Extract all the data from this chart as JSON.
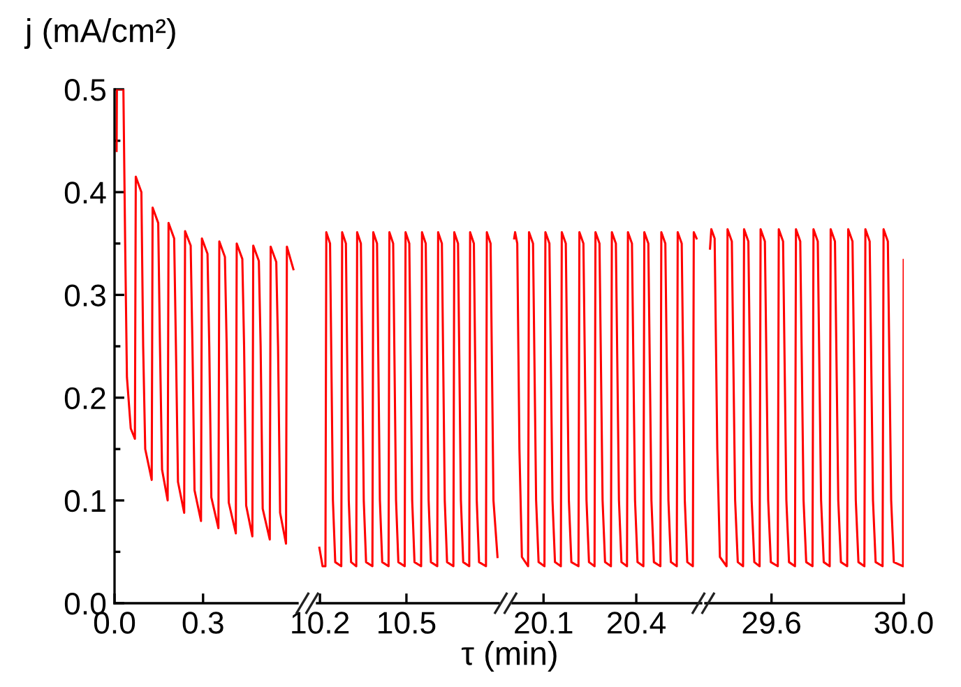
{
  "chart_data": [
    {
      "type": "line",
      "xlabel": "τ (min)",
      "ylabel": "j (mA/cm²)",
      "x": [
        0.007,
        0.008,
        0.03,
        0.036,
        0.042,
        0.055,
        0.069,
        0.072,
        0.091,
        0.097,
        0.104,
        0.126,
        0.129,
        0.148,
        0.154,
        0.161,
        0.18,
        0.183,
        0.202,
        0.208,
        0.215,
        0.236,
        0.239,
        0.258,
        0.264,
        0.271,
        0.293,
        0.296,
        0.315,
        0.321,
        0.328,
        0.352,
        0.355,
        0.374,
        0.38,
        0.387,
        0.411,
        0.414,
        0.433,
        0.439,
        0.446,
        0.467,
        0.47,
        0.489,
        0.495,
        0.502,
        0.526,
        0.529,
        0.548,
        0.554,
        0.561,
        0.581,
        0.584,
        0.606
      ],
      "series": [
        {
          "color": "#ff0000",
          "values": [
            0.44,
            0.5,
            0.5,
            0.35,
            0.22,
            0.17,
            0.16,
            0.415,
            0.4,
            0.25,
            0.15,
            0.12,
            0.385,
            0.37,
            0.25,
            0.13,
            0.1,
            0.37,
            0.355,
            0.25,
            0.118,
            0.088,
            0.362,
            0.348,
            0.25,
            0.11,
            0.08,
            0.355,
            0.34,
            0.25,
            0.103,
            0.073,
            0.352,
            0.337,
            0.25,
            0.098,
            0.068,
            0.35,
            0.335,
            0.25,
            0.095,
            0.065,
            0.348,
            0.333,
            0.25,
            0.092,
            0.062,
            0.347,
            0.332,
            0.25,
            0.088,
            0.058,
            0.347,
            0.325
          ]
        }
      ],
      "xlim": [
        0,
        0.62
      ],
      "xticks": [
        {
          "value": 0,
          "label": "0.0"
        },
        {
          "value": 0.3,
          "label": "0.3"
        }
      ],
      "ylim": [
        0,
        0.5
      ],
      "yticks": [
        {
          "value": 0,
          "label": "0.0"
        },
        {
          "value": 0.05,
          "label": null
        },
        0.1,
        {
          "value": 0.15,
          "label": null
        },
        0.2,
        {
          "value": 0.25,
          "label": null
        },
        0.3,
        {
          "value": 0.35,
          "label": null
        },
        0.4,
        {
          "value": 0.45,
          "label": null
        },
        0.5
      ]
    },
    {
      "type": "line",
      "x": [
        10.198,
        10.209,
        10.219,
        10.222,
        10.235,
        10.245,
        10.253,
        10.274,
        10.277,
        10.29,
        10.3,
        10.308,
        10.326,
        10.329,
        10.342,
        10.352,
        10.36,
        10.382,
        10.385,
        10.398,
        10.408,
        10.416,
        10.438,
        10.441,
        10.454,
        10.464,
        10.472,
        10.494,
        10.497,
        10.51,
        10.52,
        10.528,
        10.551,
        10.554,
        10.567,
        10.577,
        10.585,
        10.607,
        10.61,
        10.623,
        10.633,
        10.641,
        10.663,
        10.666,
        10.679,
        10.689,
        10.697,
        10.718,
        10.721,
        10.734,
        10.744,
        10.752,
        10.776,
        10.779,
        10.792,
        10.802,
        10.816
      ],
      "series": [
        {
          "color": "#ff0000",
          "values": [
            0.054,
            0.036,
            0.036,
            0.361,
            0.35,
            0.1,
            0.04,
            0.036,
            0.361,
            0.35,
            0.1,
            0.04,
            0.036,
            0.361,
            0.35,
            0.1,
            0.04,
            0.036,
            0.361,
            0.35,
            0.1,
            0.04,
            0.036,
            0.361,
            0.35,
            0.1,
            0.04,
            0.036,
            0.361,
            0.35,
            0.1,
            0.04,
            0.036,
            0.361,
            0.35,
            0.1,
            0.04,
            0.036,
            0.361,
            0.35,
            0.1,
            0.04,
            0.036,
            0.361,
            0.35,
            0.1,
            0.04,
            0.036,
            0.361,
            0.35,
            0.1,
            0.04,
            0.036,
            0.361,
            0.35,
            0.1,
            0.045
          ]
        }
      ],
      "xlim": [
        10.19,
        10.82
      ],
      "xticks": [
        10.2,
        10.5
      ],
      "ylim": [
        0,
        0.5
      ],
      "tick_labels": "x"
    },
    {
      "type": "line",
      "x": [
        20.005,
        20.008,
        20.015,
        20.022,
        20.03,
        20.05,
        20.053,
        20.066,
        20.076,
        20.084,
        20.103,
        20.106,
        20.119,
        20.129,
        20.137,
        20.156,
        20.159,
        20.172,
        20.182,
        20.19,
        20.213,
        20.216,
        20.229,
        20.239,
        20.247,
        20.265,
        20.268,
        20.281,
        20.291,
        20.299,
        20.318,
        20.321,
        20.334,
        20.344,
        20.352,
        20.37,
        20.373,
        20.386,
        20.396,
        20.404,
        20.423,
        20.426,
        20.439,
        20.449,
        20.457,
        20.478,
        20.481,
        20.494,
        20.504,
        20.512,
        20.531,
        20.534,
        20.547,
        20.557,
        20.565,
        20.583,
        20.586,
        20.595
      ],
      "series": [
        {
          "color": "#ff0000",
          "values": [
            0.355,
            0.361,
            0.35,
            0.15,
            0.045,
            0.036,
            0.361,
            0.35,
            0.1,
            0.04,
            0.036,
            0.361,
            0.35,
            0.1,
            0.04,
            0.036,
            0.361,
            0.35,
            0.1,
            0.04,
            0.036,
            0.361,
            0.35,
            0.1,
            0.04,
            0.036,
            0.361,
            0.35,
            0.1,
            0.04,
            0.036,
            0.361,
            0.35,
            0.1,
            0.04,
            0.036,
            0.361,
            0.35,
            0.1,
            0.04,
            0.036,
            0.361,
            0.35,
            0.1,
            0.04,
            0.036,
            0.361,
            0.35,
            0.1,
            0.04,
            0.036,
            0.361,
            0.35,
            0.1,
            0.04,
            0.036,
            0.361,
            0.355
          ]
        }
      ],
      "xlim": [
        20.0,
        20.61
      ],
      "xticks": [
        20.1,
        20.4
      ],
      "ylim": [
        0,
        0.5
      ],
      "tick_labels": "x"
    },
    {
      "type": "line",
      "x": [
        29.414,
        29.418,
        29.428,
        29.436,
        29.444,
        29.464,
        29.467,
        29.48,
        29.49,
        29.498,
        29.514,
        29.517,
        29.53,
        29.54,
        29.548,
        29.564,
        29.567,
        29.58,
        29.59,
        29.598,
        29.619,
        29.622,
        29.635,
        29.645,
        29.653,
        29.671,
        29.674,
        29.687,
        29.697,
        29.705,
        29.724,
        29.727,
        29.74,
        29.75,
        29.758,
        29.776,
        29.779,
        29.792,
        29.802,
        29.81,
        29.829,
        29.832,
        29.845,
        29.855,
        29.863,
        29.881,
        29.884,
        29.897,
        29.907,
        29.915,
        29.936,
        29.939,
        29.952,
        29.962,
        29.97,
        29.998,
        30.0
      ],
      "series": [
        {
          "color": "#ff0000",
          "values": [
            0.345,
            0.364,
            0.355,
            0.15,
            0.045,
            0.036,
            0.364,
            0.352,
            0.1,
            0.04,
            0.036,
            0.364,
            0.352,
            0.1,
            0.04,
            0.036,
            0.364,
            0.352,
            0.1,
            0.04,
            0.036,
            0.364,
            0.352,
            0.1,
            0.04,
            0.036,
            0.364,
            0.352,
            0.1,
            0.04,
            0.036,
            0.364,
            0.352,
            0.1,
            0.04,
            0.036,
            0.364,
            0.352,
            0.1,
            0.04,
            0.036,
            0.364,
            0.352,
            0.1,
            0.04,
            0.036,
            0.364,
            0.352,
            0.1,
            0.04,
            0.036,
            0.364,
            0.352,
            0.1,
            0.04,
            0.036,
            0.334
          ]
        }
      ],
      "xlim": [
        29.4,
        30.0
      ],
      "xticks": [
        29.6,
        {
          "value": 30.0,
          "label": "30.0"
        }
      ],
      "ylim": [
        0,
        0.5
      ],
      "tick_labels": "x"
    }
  ]
}
